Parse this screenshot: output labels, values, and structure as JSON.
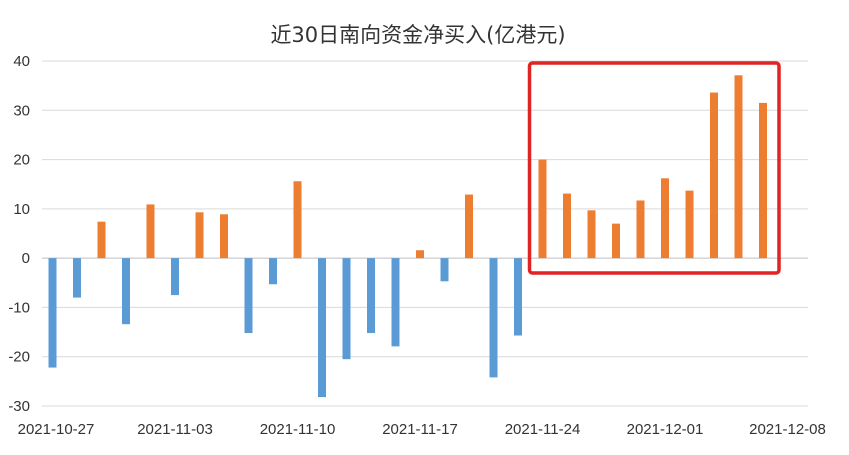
{
  "chart_data": {
    "type": "bar",
    "title": "近30日南向资金净买入(亿港元)",
    "xlabel": "",
    "ylabel": "",
    "ylim": [
      -30,
      40
    ],
    "yticks": [
      -30,
      -20,
      -10,
      0,
      10,
      20,
      30,
      40
    ],
    "grid": true,
    "legend": "none",
    "x_tick_labels": [
      "2021-10-27",
      "2021-11-03",
      "2021-11-10",
      "2021-11-17",
      "2021-11-24",
      "2021-12-01",
      "2021-12-08"
    ],
    "values": [
      -22.2,
      -8,
      7.4,
      -13.4,
      10.9,
      -7.5,
      9.3,
      8.9,
      -15.2,
      -5.3,
      15.6,
      -28.2,
      -20.5,
      -15.2,
      -17.9,
      1.6,
      -4.7,
      12.9,
      -24.2,
      -15.7,
      20.0,
      13.1,
      9.7,
      7.0,
      11.7,
      16.2,
      13.7,
      33.6,
      37.1,
      31.5
    ],
    "colors": {
      "negative": "#5b9bd5",
      "positive": "#ed7d31",
      "highlight_box": "#e02424"
    },
    "highlight": {
      "from_index": 20,
      "to_index": 29
    }
  }
}
